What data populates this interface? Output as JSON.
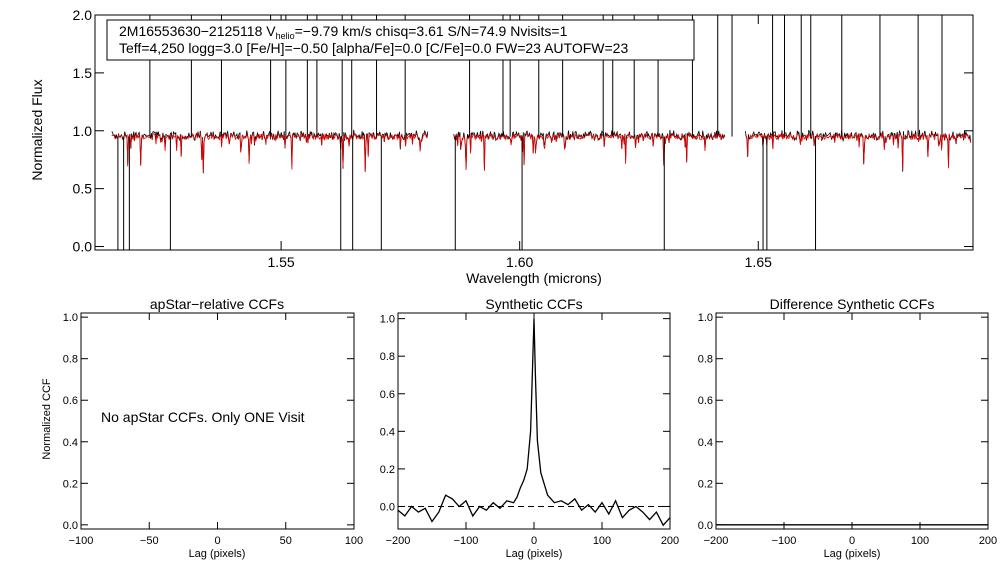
{
  "chart_data": [
    {
      "type": "line",
      "id": "spectrum",
      "ylabel": "Normalized Flux",
      "xlabel": "Wavelength (microns)",
      "xlim": [
        1.511,
        1.695
      ],
      "ylim": [
        -0.03,
        2.0
      ],
      "xticks": [
        {
          "value": 1.55,
          "label": "1.55"
        },
        {
          "value": 1.6,
          "label": "1.60"
        },
        {
          "value": 1.65,
          "label": "1.65"
        }
      ],
      "yticks": [
        {
          "value": 0.0,
          "label": "0.0"
        },
        {
          "value": 0.5,
          "label": "0.5"
        },
        {
          "value": 1.0,
          "label": "1.0"
        },
        {
          "value": 1.5,
          "label": "1.5"
        },
        {
          "value": 2.0,
          "label": "2.0"
        }
      ],
      "info_lines": {
        "line1_pre": "2M16553630−2125118  V",
        "line1_sub": "helio",
        "line1_post": "=−9.79 km/s  chisq=3.61  S/N=74.9  Nvisits=1",
        "line2": "Teff=4,250 logg=3.0 [Fe/H]=−0.50 [alpha/Fe]=0.0 [C/Fe]=0.0 FW=23 AUTOFW=23"
      },
      "chips": [
        [
          1.5145,
          1.5808
        ],
        [
          1.5862,
          1.643
        ],
        [
          1.6473,
          1.6945
        ]
      ],
      "series": [
        {
          "name": "observed",
          "color": "#000000"
        },
        {
          "name": "synthetic",
          "color": "#e00000"
        }
      ],
      "emission_spikes": [
        1.5225,
        1.5312,
        1.5375,
        1.5478,
        1.551,
        1.5555,
        1.5575,
        1.5628,
        1.5648,
        1.57,
        1.576,
        1.5895,
        1.5965,
        1.598,
        1.604,
        1.609,
        1.6175,
        1.6195,
        1.624,
        1.629,
        1.6362,
        1.6415,
        1.6445,
        1.653,
        1.6555,
        1.659,
        1.661,
        1.6675,
        1.6755,
        1.6835,
        1.6885
      ],
      "absorption_dips": [
        1.5158,
        1.517,
        1.5182,
        1.5268,
        1.5625,
        1.565,
        1.571,
        1.5865,
        1.6005,
        1.6303,
        1.651,
        1.6518,
        1.662
      ]
    },
    {
      "type": "line",
      "id": "apstar-ccf",
      "title": "apStar−relative CCFs",
      "ylabel": "Normalized CCF",
      "xlabel": "Lag (pixels)",
      "xlim": [
        -100,
        100
      ],
      "ylim": [
        -0.02,
        1.02
      ],
      "xticks": [
        {
          "value": -100,
          "label": "−100"
        },
        {
          "value": -50,
          "label": "−50"
        },
        {
          "value": 0,
          "label": "0"
        },
        {
          "value": 50,
          "label": "50"
        },
        {
          "value": 100,
          "label": "100"
        }
      ],
      "yticks": [
        {
          "value": 0.0,
          "label": "0.0"
        },
        {
          "value": 0.2,
          "label": "0.2"
        },
        {
          "value": 0.4,
          "label": "0.4"
        },
        {
          "value": 0.6,
          "label": "0.6"
        },
        {
          "value": 0.8,
          "label": "0.8"
        },
        {
          "value": 1.0,
          "label": "1.0"
        }
      ],
      "annotation": "No apStar CCFs.  Only ONE Visit"
    },
    {
      "type": "line",
      "id": "synthetic-ccf",
      "title": "Synthetic CCFs",
      "xlabel": "Lag (pixels)",
      "xlim": [
        -200,
        200
      ],
      "ylim": [
        -0.12,
        1.03
      ],
      "xticks": [
        {
          "value": -200,
          "label": "−200"
        },
        {
          "value": -100,
          "label": "−100"
        },
        {
          "value": 0,
          "label": "0"
        },
        {
          "value": 100,
          "label": "100"
        },
        {
          "value": 200,
          "label": "200"
        }
      ],
      "yticks": [
        {
          "value": 0.0,
          "label": "0.0"
        },
        {
          "value": 0.2,
          "label": "0.2"
        },
        {
          "value": 0.4,
          "label": "0.4"
        },
        {
          "value": 0.6,
          "label": "0.6"
        },
        {
          "value": 0.8,
          "label": "0.8"
        },
        {
          "value": 1.0,
          "label": "1.0"
        }
      ],
      "baseline": 0.0,
      "x": [
        -200,
        -190,
        -180,
        -170,
        -160,
        -150,
        -140,
        -130,
        -120,
        -110,
        -100,
        -90,
        -80,
        -70,
        -60,
        -50,
        -40,
        -30,
        -25,
        -20,
        -15,
        -10,
        -5,
        -2,
        0,
        2,
        5,
        10,
        15,
        20,
        25,
        30,
        40,
        50,
        60,
        70,
        80,
        90,
        100,
        110,
        120,
        130,
        140,
        150,
        160,
        170,
        180,
        190,
        200
      ],
      "y": [
        -0.02,
        -0.05,
        0.0,
        -0.03,
        -0.01,
        -0.08,
        -0.03,
        0.06,
        0.04,
        0.0,
        0.03,
        -0.05,
        0.0,
        -0.02,
        0.02,
        -0.01,
        0.03,
        0.02,
        0.05,
        0.1,
        0.14,
        0.2,
        0.4,
        0.75,
        1.0,
        0.7,
        0.35,
        0.18,
        0.12,
        0.06,
        0.04,
        0.02,
        0.03,
        0.01,
        0.04,
        -0.02,
        0.01,
        -0.03,
        0.02,
        -0.04,
        0.03,
        -0.06,
        -0.02,
        0.0,
        -0.03,
        -0.07,
        -0.03,
        -0.1,
        -0.06
      ]
    },
    {
      "type": "line",
      "id": "difference-ccf",
      "title": "Difference Synthetic CCFs",
      "xlabel": "Lag (pixels)",
      "xlim": [
        -200,
        200
      ],
      "ylim": [
        -0.02,
        1.02
      ],
      "xticks": [
        {
          "value": -200,
          "label": "−200"
        },
        {
          "value": -100,
          "label": "−100"
        },
        {
          "value": 0,
          "label": "0"
        },
        {
          "value": 100,
          "label": "100"
        },
        {
          "value": 200,
          "label": "200"
        }
      ],
      "yticks": [
        {
          "value": 0.0,
          "label": "0.0"
        },
        {
          "value": 0.2,
          "label": "0.2"
        },
        {
          "value": 0.4,
          "label": "0.4"
        },
        {
          "value": 0.6,
          "label": "0.6"
        },
        {
          "value": 0.8,
          "label": "0.8"
        },
        {
          "value": 1.0,
          "label": "1.0"
        }
      ],
      "x": [
        -200,
        200
      ],
      "y": [
        0.0,
        0.0
      ]
    }
  ]
}
